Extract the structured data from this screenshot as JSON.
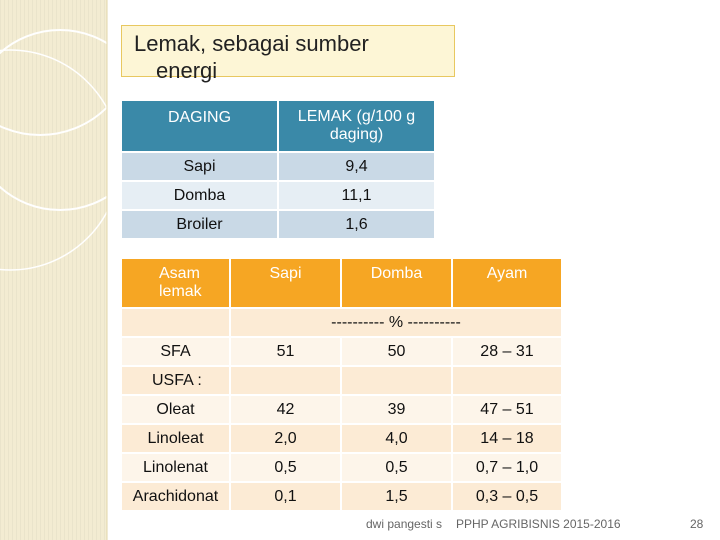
{
  "title": {
    "line1": "Lemak, sebagai sumber",
    "line2": "energi"
  },
  "table1": {
    "headers": [
      "DAGING",
      "LEMAK (g/100 g daging)"
    ],
    "rows": [
      {
        "meat": "Sapi",
        "fat": "9,4"
      },
      {
        "meat": "Domba",
        "fat": "11,1"
      },
      {
        "meat": "Broiler",
        "fat": "1,6"
      }
    ]
  },
  "table2": {
    "headers": [
      "Asam lemak",
      "Sapi",
      "Domba",
      "Ayam"
    ],
    "unit_row": "---------- % ----------",
    "sfa": {
      "label": "SFA",
      "sapi": "51",
      "domba": "50",
      "ayam": "28 – 31"
    },
    "usfa_label": "USFA :",
    "rows": [
      {
        "label": "Oleat",
        "sapi": "42",
        "domba": "39",
        "ayam": "47 – 51"
      },
      {
        "label": "Linoleat",
        "sapi": "2,0",
        "domba": "4,0",
        "ayam": "14 – 18"
      },
      {
        "label": "Linolenat",
        "sapi": "0,5",
        "domba": "0,5",
        "ayam": "0,7 – 1,0"
      },
      {
        "label": "Arachidonat",
        "sapi": "0,1",
        "domba": "1,5",
        "ayam": "0,3 – 0,5"
      }
    ]
  },
  "footer": {
    "author": "dwi pangesti s",
    "course": "PPHP AGRIBISNIS 2015-2016",
    "page": "28"
  },
  "colors": {
    "header_blue": "#3a89a8",
    "header_orange": "#f6a623",
    "left_band": "#f3ecd2"
  }
}
